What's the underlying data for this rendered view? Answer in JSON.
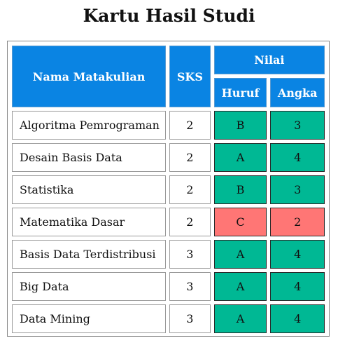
{
  "title": "Kartu Hasil Studi",
  "headers": {
    "course": "Nama Matakulian",
    "credits": "SKS",
    "grade": "Nilai",
    "letter": "Huruf",
    "number": "Angka"
  },
  "colors": {
    "header": "#0a84e3",
    "good": "#00b894",
    "bad": "#ff7675"
  },
  "rows": [
    {
      "course": "Algoritma Pemrograman",
      "sks": "2",
      "huruf": "B",
      "angka": "3"
    },
    {
      "course": "Desain Basis Data",
      "sks": "2",
      "huruf": "A",
      "angka": "4"
    },
    {
      "course": "Statistika",
      "sks": "2",
      "huruf": "B",
      "angka": "3"
    },
    {
      "course": "Matematika Dasar",
      "sks": "2",
      "huruf": "C",
      "angka": "2"
    },
    {
      "course": "Basis Data Terdistribusi",
      "sks": "3",
      "huruf": "A",
      "angka": "4"
    },
    {
      "course": "Big Data",
      "sks": "3",
      "huruf": "A",
      "angka": "4"
    },
    {
      "course": "Data Mining",
      "sks": "3",
      "huruf": "A",
      "angka": "4"
    }
  ]
}
